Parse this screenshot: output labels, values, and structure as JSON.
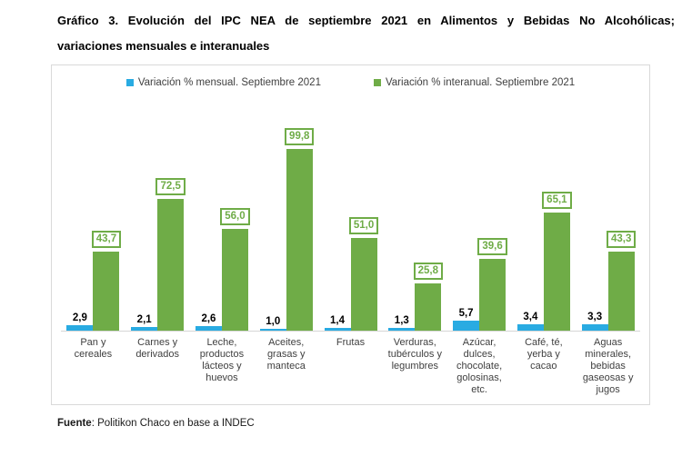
{
  "header": {
    "line1": "Gráfico 3. Evolución del IPC NEA de septiembre 2021 en Alimentos y Bebidas No Alcohólicas;",
    "line2": "variaciones mensuales e interanuales"
  },
  "chart_data": {
    "type": "bar",
    "title": "Gráfico 3. Evolución del IPC NEA de septiembre 2021 en Alimentos y Bebidas No Alcohólicas; variaciones mensuales e interanuales",
    "categories": [
      "Pan y cereales",
      "Carnes y derivados",
      "Leche, productos lácteos y huevos",
      "Aceites, grasas y manteca",
      "Frutas",
      "Verduras, tubérculos y legumbres",
      "Azúcar, dulces, chocolate, golosinas, etc.",
      "Café, té, yerba y cacao",
      "Aguas minerales, bebidas gaseosas y jugos"
    ],
    "series": [
      {
        "name": "Variación % mensual. Septiembre 2021",
        "color": "#29abe2",
        "values": [
          2.9,
          2.1,
          2.6,
          1.0,
          1.4,
          1.3,
          5.7,
          3.4,
          3.3
        ],
        "labels": [
          "2,9",
          "2,1",
          "2,6",
          "1,0",
          "1,4",
          "1,3",
          "5,7",
          "3,4",
          "3,3"
        ]
      },
      {
        "name": "Variación % interanual. Septiembre 2021",
        "color": "#6fac47",
        "values": [
          43.7,
          72.5,
          56.0,
          99.8,
          51.0,
          25.8,
          39.6,
          65.1,
          43.3
        ],
        "labels": [
          "43,7",
          "72,5",
          "56,0",
          "99,8",
          "51,0",
          "25,8",
          "39,6",
          "65,1",
          "43,3"
        ]
      }
    ],
    "xlabel": "",
    "ylabel": "",
    "ylim": [
      0,
      110
    ],
    "grid": false,
    "y_axis_visible": false,
    "legend_position": "top",
    "box_border_color": "#d9d9d9"
  },
  "footer": {
    "source_label": "Fuente",
    "source_text": ": Politikon Chaco en base a INDEC"
  }
}
